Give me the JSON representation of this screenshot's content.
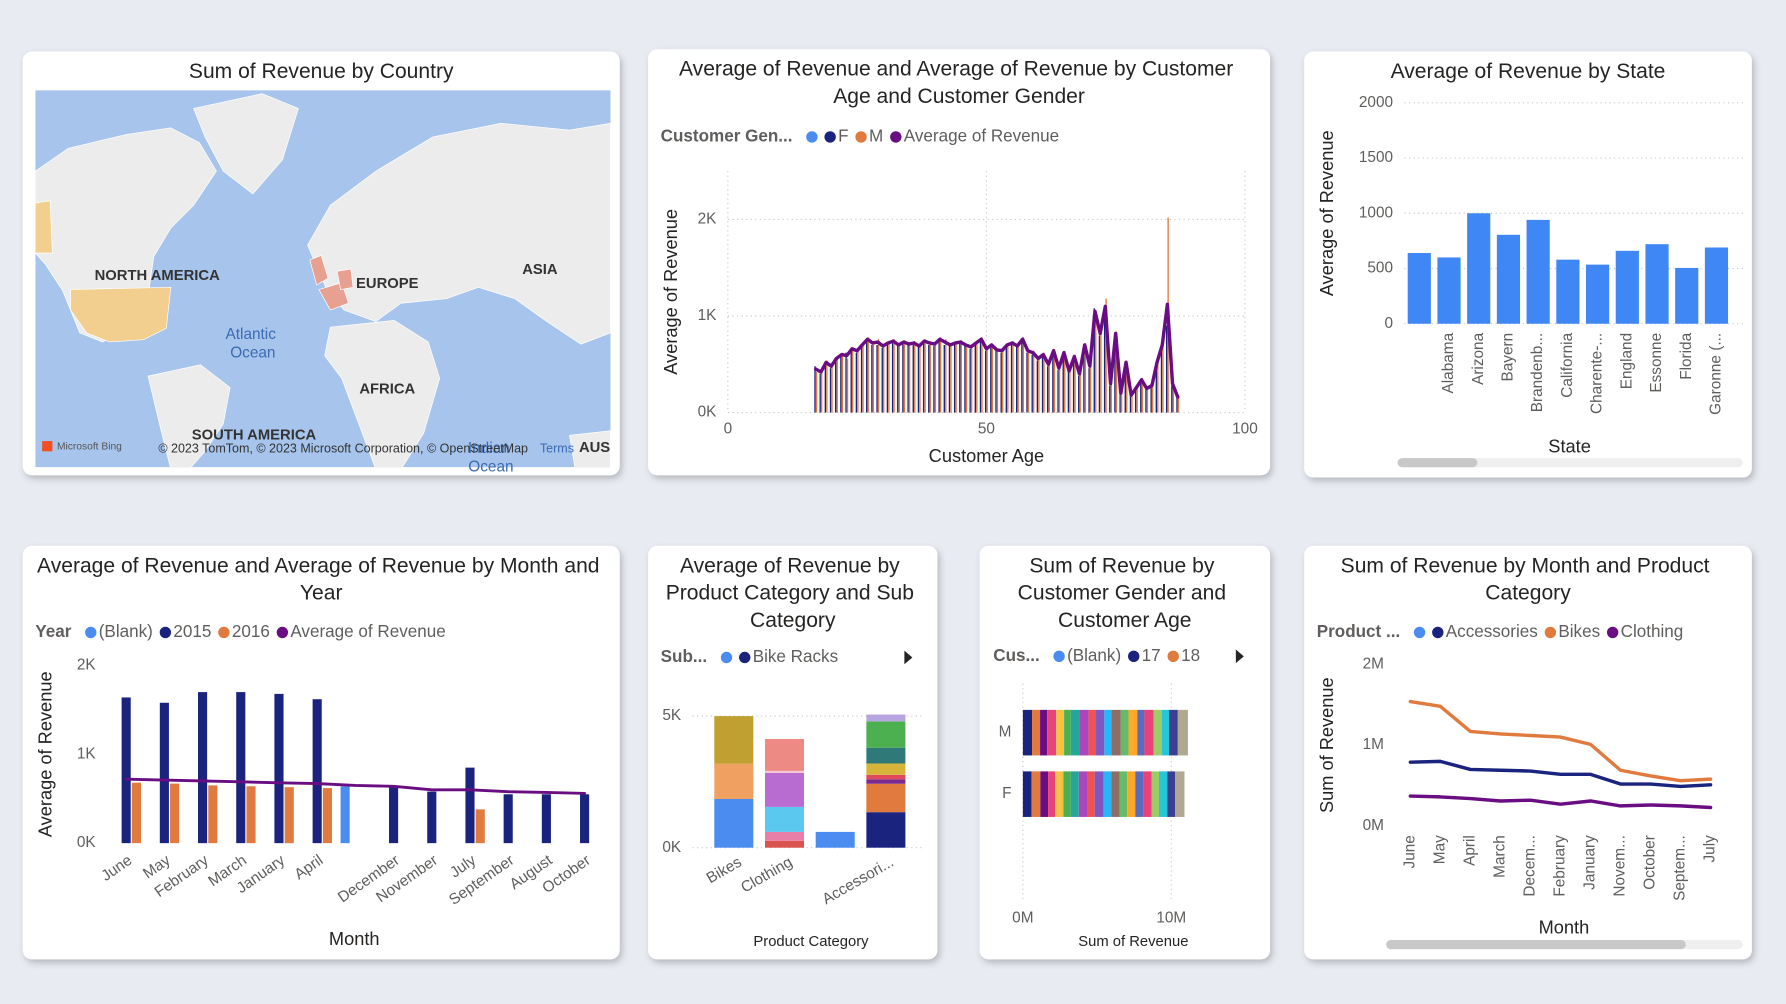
{
  "chart_data": [
    {
      "type": "map",
      "title": "Sum of Revenue by Country",
      "labels": [
        "NORTH AMERICA",
        "EUROPE",
        "ASIA",
        "Atlantic Ocean",
        "AFRICA",
        "SOUTH AMERICA",
        "Indian Ocean",
        "AUS"
      ],
      "provider": "Microsoft Bing",
      "attribution": "© 2023 TomTom, © 2023 Microsoft Corporation, © OpenStreetMap",
      "terms": "Terms"
    },
    {
      "type": "bar-line",
      "title": "Average of Revenue and Average of Revenue by Customer Age and Customer Gender",
      "legend_title": "Customer Gen...",
      "x": [
        17,
        18,
        19,
        20,
        21,
        22,
        23,
        24,
        25,
        26,
        27,
        28,
        29,
        30,
        31,
        32,
        33,
        34,
        35,
        36,
        37,
        38,
        39,
        40,
        41,
        42,
        43,
        44,
        45,
        46,
        47,
        48,
        49,
        50,
        51,
        52,
        53,
        54,
        55,
        56,
        57,
        58,
        59,
        60,
        61,
        62,
        63,
        64,
        65,
        66,
        67,
        68,
        69,
        70,
        71,
        72,
        73,
        74,
        75,
        76,
        77,
        78,
        79,
        80,
        81,
        82,
        83,
        84,
        85,
        86,
        87
      ],
      "series": [
        {
          "name": "F",
          "color": "#1a237e",
          "values": [
            480,
            400,
            500,
            460,
            540,
            580,
            620,
            640,
            620,
            680,
            740,
            700,
            700,
            670,
            700,
            720,
            690,
            710,
            700,
            700,
            680,
            720,
            700,
            690,
            740,
            700,
            690,
            700,
            710,
            690,
            660,
            700,
            740,
            640,
            690,
            640,
            620,
            680,
            700,
            680,
            740,
            620,
            600,
            540,
            580,
            480,
            620,
            440,
            600,
            420,
            560,
            380,
            680,
            460,
            1080,
            800,
            1050,
            280,
            800,
            190,
            500,
            170,
            240,
            320,
            240,
            260,
            500,
            680,
            900,
            280,
            150
          ]
        },
        {
          "name": "M",
          "color": "#e07a3e",
          "values": [
            420,
            440,
            540,
            500,
            580,
            620,
            560,
            680,
            660,
            720,
            780,
            740,
            760,
            710,
            740,
            760,
            710,
            750,
            720,
            740,
            700,
            760,
            740,
            730,
            780,
            760,
            710,
            740,
            750,
            710,
            700,
            740,
            780,
            680,
            710,
            660,
            660,
            720,
            740,
            700,
            780,
            660,
            640,
            580,
            620,
            520,
            660,
            480,
            640,
            440,
            600,
            420,
            720,
            500,
            1020,
            840,
            1180,
            320,
            840,
            210,
            540,
            190,
            280,
            360,
            260,
            300,
            540,
            720,
            2020,
            320,
            170
          ]
        },
        {
          "name": "Average of Revenue",
          "kind": "line",
          "color": "#6a0d83",
          "values": [
            450,
            420,
            520,
            480,
            560,
            600,
            590,
            660,
            640,
            700,
            760,
            720,
            730,
            690,
            720,
            740,
            700,
            730,
            710,
            720,
            690,
            740,
            720,
            710,
            760,
            730,
            700,
            720,
            730,
            700,
            680,
            720,
            760,
            660,
            700,
            650,
            640,
            700,
            720,
            690,
            760,
            640,
            620,
            560,
            600,
            500,
            640,
            460,
            620,
            430,
            580,
            400,
            700,
            480,
            1050,
            820,
            1100,
            300,
            820,
            200,
            520,
            180,
            260,
            340,
            250,
            280,
            520,
            700,
            1120,
            300,
            160
          ]
        }
      ],
      "xlim": [
        0,
        100
      ],
      "xticks": [
        0,
        50,
        100
      ],
      "ylim": [
        0,
        2500
      ],
      "yticks": [
        {
          "value": 0,
          "label": "0K"
        },
        {
          "value": 1000,
          "label": "1K"
        },
        {
          "value": 2000,
          "label": "2K"
        }
      ],
      "xlabel": "Customer Age",
      "ylabel": "Average of Revenue",
      "grid": true
    },
    {
      "type": "bar",
      "title": "Average of Revenue by State",
      "categories": [
        null,
        "Alabama",
        "Arizona",
        "Bayern",
        "Brandenb...",
        "California",
        "Charente-...",
        "England",
        "Essonne",
        "Florida",
        "Garonne (..."
      ],
      "values": [
        640,
        600,
        1000,
        805,
        940,
        580,
        535,
        660,
        720,
        505,
        690
      ],
      "color": "#3f87f5",
      "ylim": [
        0,
        2000
      ],
      "yticks": [
        0,
        500,
        1000,
        1500,
        2000
      ],
      "xlabel": "State",
      "ylabel": "Average of Revenue",
      "grid": true
    },
    {
      "type": "bar-line",
      "title": "Average of Revenue and Average of Revenue by Month and Year",
      "legend_title": "Year",
      "categories": [
        "June",
        "May",
        "February",
        "March",
        "January",
        "April",
        null,
        "December",
        "November",
        "July",
        "September",
        "August",
        "October"
      ],
      "series": [
        {
          "name": "(Blank)",
          "color": "#4a8cf0",
          "values": [
            null,
            null,
            null,
            null,
            null,
            null,
            640,
            null,
            null,
            null,
            null,
            null,
            null
          ]
        },
        {
          "name": "2015",
          "color": "#1a237e",
          "values": [
            1640,
            1580,
            1700,
            1700,
            1680,
            1620,
            null,
            640,
            580,
            850,
            550,
            550,
            550
          ]
        },
        {
          "name": "2016",
          "color": "#e07a3e",
          "values": [
            680,
            670,
            650,
            640,
            630,
            620,
            null,
            null,
            null,
            380,
            null,
            null,
            null
          ]
        },
        {
          "name": "Average of Revenue",
          "kind": "line",
          "color": "#6a0d83",
          "values": [
            720,
            710,
            700,
            690,
            680,
            670,
            650,
            640,
            600,
            600,
            580,
            570,
            560
          ]
        }
      ],
      "ylim": [
        0,
        2000
      ],
      "yticks": [
        {
          "value": 0,
          "label": "0K"
        },
        {
          "value": 1000,
          "label": "1K"
        },
        {
          "value": 2000,
          "label": "2K"
        }
      ],
      "xlabel": "Month",
      "ylabel": "Average of Revenue",
      "grid": false
    },
    {
      "type": "stacked-bar",
      "title": "Average of Revenue by Product Category and Sub Category",
      "legend_title": "Sub...",
      "categories": [
        "Bikes",
        "Clothing",
        null,
        "Accessori..."
      ],
      "series": [
        {
          "name": null,
          "color": "#4a8cf0",
          "values": [
            1850,
            null,
            600,
            null
          ]
        },
        {
          "name": "Bike Racks",
          "color": "#1a237e",
          "values": [
            null,
            null,
            null,
            1350
          ]
        },
        {
          "name": null,
          "color": "#f0a060",
          "values": [
            1340,
            null,
            null,
            null
          ]
        },
        {
          "name": null,
          "color": "#c0a030",
          "values": [
            1810,
            null,
            null,
            null
          ]
        },
        {
          "name": null,
          "color": "#d9534f",
          "values": [
            null,
            260,
            null,
            null
          ]
        },
        {
          "name": null,
          "color": "#e87fa8",
          "values": [
            null,
            340,
            null,
            null
          ]
        },
        {
          "name": null,
          "color": "#5bc8f0",
          "values": [
            null,
            950,
            null,
            null
          ]
        },
        {
          "name": null,
          "color": "#b86bd0",
          "values": [
            null,
            1290,
            null,
            null
          ]
        },
        {
          "name": null,
          "color": "#f6c6d6",
          "values": [
            null,
            80,
            null,
            null
          ]
        },
        {
          "name": null,
          "color": "#ee8a84",
          "values": [
            null,
            1210,
            null,
            null
          ]
        },
        {
          "name": null,
          "color": "#e07a3e",
          "values": [
            null,
            null,
            null,
            1080
          ]
        },
        {
          "name": null,
          "color": "#7b2a90",
          "values": [
            null,
            null,
            null,
            170
          ]
        },
        {
          "name": null,
          "color": "#e04a5a",
          "values": [
            null,
            null,
            null,
            170
          ]
        },
        {
          "name": null,
          "color": "#d6b43a",
          "values": [
            null,
            null,
            null,
            430
          ]
        },
        {
          "name": null,
          "color": "#2f7a78",
          "values": [
            null,
            null,
            null,
            600
          ]
        },
        {
          "name": null,
          "color": "#4caf50",
          "values": [
            null,
            null,
            null,
            1000
          ]
        },
        {
          "name": null,
          "color": "#b7a4e0",
          "values": [
            null,
            null,
            null,
            260
          ]
        }
      ],
      "ylim": [
        0,
        5800
      ],
      "yticks": [
        {
          "value": 0,
          "label": "0K"
        },
        {
          "value": 5000,
          "label": "5K"
        }
      ],
      "xlabel": "Product Category",
      "grid": true
    },
    {
      "type": "stacked-barh",
      "title": "Sum of Revenue by Customer Gender and Customer Age",
      "legend_title": "Cus...",
      "categories": [
        "M",
        "F"
      ],
      "series": [
        {
          "name": "(Blank)",
          "color": "#4a8cf0",
          "values": [
            null,
            null
          ]
        },
        {
          "name": "17",
          "color": "#1a237e",
          "values": [
            620000,
            580000
          ]
        },
        {
          "name": "18",
          "color": "#e07a3e",
          "values": [
            540000,
            600000
          ]
        },
        {
          "name": null,
          "color": "#6a0d83",
          "values": [
            480000,
            520000
          ]
        },
        {
          "name": null,
          "color": "#e8447a",
          "values": [
            610000,
            470000
          ]
        },
        {
          "name": null,
          "color": "#f5c342",
          "values": [
            530000,
            560000
          ]
        },
        {
          "name": null,
          "color": "#4caf50",
          "values": [
            450000,
            500000
          ]
        },
        {
          "name": null,
          "color": "#26a69a",
          "values": [
            580000,
            540000
          ]
        },
        {
          "name": null,
          "color": "#ab47bc",
          "values": [
            620000,
            590000
          ]
        },
        {
          "name": null,
          "color": "#ef5350",
          "values": [
            500000,
            480000
          ]
        },
        {
          "name": null,
          "color": "#7e57c2",
          "values": [
            560000,
            610000
          ]
        },
        {
          "name": null,
          "color": "#29b6f6",
          "values": [
            470000,
            520000
          ]
        },
        {
          "name": null,
          "color": "#8d6e63",
          "values": [
            640000,
            560000
          ]
        },
        {
          "name": null,
          "color": "#66bb6a",
          "values": [
            520000,
            500000
          ]
        },
        {
          "name": null,
          "color": "#ffa726",
          "values": [
            590000,
            540000
          ]
        },
        {
          "name": null,
          "color": "#5c6bc0",
          "values": [
            480000,
            530000
          ]
        },
        {
          "name": null,
          "color": "#ec407a",
          "values": [
            610000,
            570000
          ]
        },
        {
          "name": null,
          "color": "#9ccc65",
          "values": [
            550000,
            500000
          ]
        },
        {
          "name": null,
          "color": "#26c6da",
          "values": [
            500000,
            560000
          ]
        },
        {
          "name": null,
          "color": "#3b3f8f",
          "values": [
            590000,
            520000
          ]
        },
        {
          "name": null,
          "color": "#b0a890",
          "values": [
            680000,
            640000
          ]
        }
      ],
      "xlim": [
        0,
        15500000
      ],
      "xticks": [
        {
          "value": 0,
          "label": "0M"
        },
        {
          "value": 10000000,
          "label": "10M"
        }
      ],
      "xlabel": "Sum of Revenue",
      "grid": true
    },
    {
      "type": "line",
      "title": "Sum of Revenue by Month and Product Category",
      "legend_title": "Product ...",
      "categories": [
        "June",
        "May",
        "April",
        "March",
        "Decem...",
        "February",
        "January",
        "Novem...",
        "October",
        "Septem...",
        "July"
      ],
      "series": [
        {
          "name": "Accessories",
          "color": "#1a237e",
          "values": [
            790000,
            800000,
            700000,
            690000,
            680000,
            640000,
            640000,
            520000,
            520000,
            490000,
            510000
          ]
        },
        {
          "name": "Bikes",
          "color": "#e07a3e",
          "values": [
            1540000,
            1480000,
            1170000,
            1140000,
            1120000,
            1100000,
            1010000,
            690000,
            620000,
            560000,
            580000
          ]
        },
        {
          "name": "Clothing",
          "color": "#6a0d83",
          "values": [
            370000,
            360000,
            340000,
            310000,
            320000,
            270000,
            310000,
            250000,
            260000,
            250000,
            230000
          ]
        }
      ],
      "ylim": [
        0,
        2000000
      ],
      "yticks": [
        {
          "value": 0,
          "label": "0M"
        },
        {
          "value": 1000000,
          "label": "1M"
        },
        {
          "value": 2000000,
          "label": "2M"
        }
      ],
      "xlabel": "Month",
      "ylabel": "Sum of Revenue",
      "grid": false
    }
  ]
}
